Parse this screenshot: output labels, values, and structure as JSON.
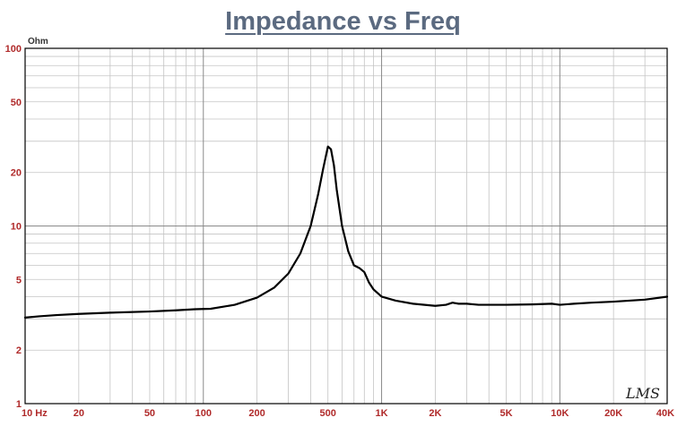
{
  "chart_data": {
    "type": "line",
    "title": "Impedance vs Freq",
    "ylabel": "Ohm",
    "xscale": "log",
    "yscale": "log",
    "xlim": [
      10,
      40000
    ],
    "ylim": [
      1,
      100
    ],
    "grid": true,
    "legend": "none",
    "line_color": "#000000",
    "title_color": "#5b6a80",
    "tick_color": "#b02a2a",
    "x_ticks": [
      {
        "value": 10,
        "label": "10 Hz"
      },
      {
        "value": 20,
        "label": "20"
      },
      {
        "value": 50,
        "label": "50"
      },
      {
        "value": 100,
        "label": "100"
      },
      {
        "value": 200,
        "label": "200"
      },
      {
        "value": 500,
        "label": "500"
      },
      {
        "value": 1000,
        "label": "1K"
      },
      {
        "value": 2000,
        "label": "2K"
      },
      {
        "value": 5000,
        "label": "5K"
      },
      {
        "value": 10000,
        "label": "10K"
      },
      {
        "value": 20000,
        "label": "20K"
      },
      {
        "value": 40000,
        "label": "40K"
      }
    ],
    "y_ticks": [
      {
        "value": 100,
        "label": "100"
      },
      {
        "value": 50,
        "label": "50"
      },
      {
        "value": 20,
        "label": "20"
      },
      {
        "value": 10,
        "label": "10"
      },
      {
        "value": 5,
        "label": "5"
      },
      {
        "value": 2,
        "label": "2"
      },
      {
        "value": 1,
        "label": "1"
      }
    ],
    "series": [
      {
        "x": [
          10,
          12,
          15,
          20,
          30,
          50,
          70,
          90,
          110,
          150,
          200,
          250,
          300,
          350,
          400,
          440,
          470,
          500,
          520,
          540,
          560,
          600,
          650,
          700,
          750,
          800,
          850,
          900,
          1000,
          1200,
          1500,
          2000,
          2300,
          2500,
          2700,
          3000,
          3500,
          4000,
          5000,
          7000,
          9000,
          10000,
          12000,
          15000,
          20000,
          30000,
          40000
        ],
        "values": [
          3.05,
          3.1,
          3.15,
          3.2,
          3.25,
          3.3,
          3.35,
          3.4,
          3.42,
          3.6,
          3.95,
          4.5,
          5.4,
          7.0,
          10.0,
          15.0,
          21.0,
          28.0,
          27.0,
          22.0,
          16.0,
          10.0,
          7.2,
          6.0,
          5.8,
          5.5,
          4.8,
          4.4,
          4.0,
          3.8,
          3.65,
          3.55,
          3.6,
          3.7,
          3.65,
          3.65,
          3.6,
          3.6,
          3.6,
          3.62,
          3.65,
          3.6,
          3.65,
          3.7,
          3.75,
          3.85,
          4.0
        ]
      }
    ]
  },
  "logo_text": "LMS"
}
